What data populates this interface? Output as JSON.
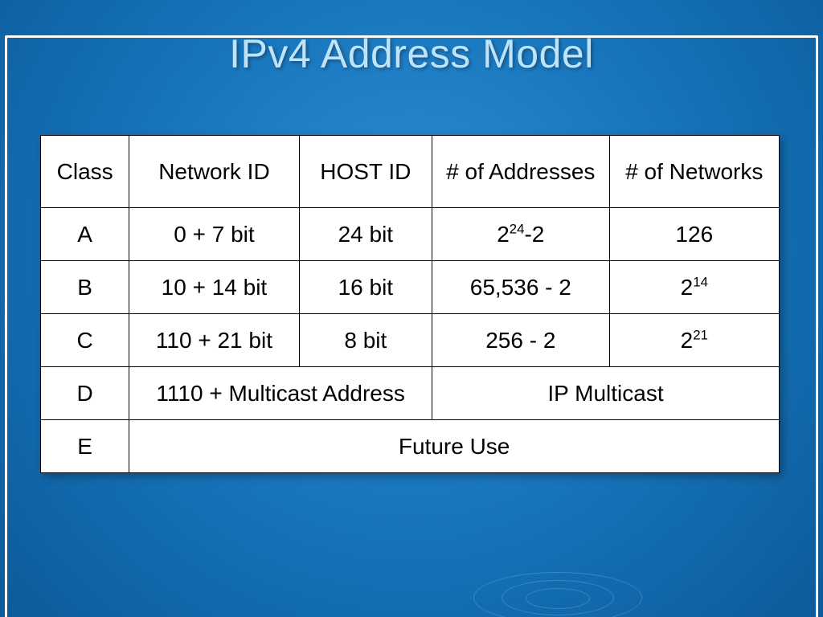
{
  "title": "IPv4 Address Model",
  "background_gradient": [
    "#2d8dd6",
    "#1572b8",
    "#0d5a99"
  ],
  "title_color": "#bfe3f8",
  "frame_color": "#ffffff",
  "table": {
    "type": "table",
    "background_color": "#ffffff",
    "border_color": "#000000",
    "text_color": "#000000",
    "header_fontsize": 28,
    "cell_fontsize": 28,
    "column_widths_pct": [
      12,
      23,
      18,
      24,
      23
    ],
    "columns": [
      "Class",
      "Network ID",
      "HOST ID",
      "# of Addresses",
      "# of Networks"
    ],
    "rows": [
      {
        "class": "A",
        "network_id": "0 + 7 bit",
        "host_id": "24 bit",
        "addresses_html": "2<sup>24</sup>-2",
        "addresses_plain": "2^24-2",
        "networks_html": "126",
        "networks_plain": "126"
      },
      {
        "class": "B",
        "network_id": "10 + 14 bit",
        "host_id": "16 bit",
        "addresses_html": "65,536 - 2",
        "addresses_plain": "65,536 - 2",
        "networks_html": "2<sup>14</sup>",
        "networks_plain": "2^14"
      },
      {
        "class": "C",
        "network_id": "110 + 21 bit",
        "host_id": "8 bit",
        "addresses_html": "256 - 2",
        "addresses_plain": "256 - 2",
        "networks_html": "2<sup>21</sup>",
        "networks_plain": "2^21"
      },
      {
        "class": "D",
        "merged1": {
          "text": "1110 + Multicast Address",
          "colspan": 2
        },
        "merged2": {
          "text": "IP Multicast",
          "colspan": 2
        }
      },
      {
        "class": "E",
        "merged_full": {
          "text": "Future Use",
          "colspan": 4
        }
      }
    ]
  }
}
